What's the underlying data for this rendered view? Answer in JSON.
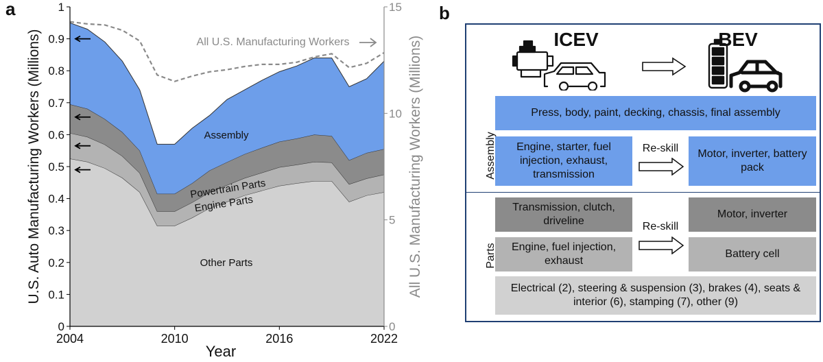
{
  "panel_a_label": "a",
  "panel_b_label": "b",
  "chart_data": {
    "type": "area",
    "stacked": true,
    "x": [
      2004,
      2005,
      2006,
      2007,
      2008,
      2009,
      2010,
      2011,
      2012,
      2013,
      2014,
      2015,
      2016,
      2017,
      2018,
      2019,
      2020,
      2021,
      2022
    ],
    "xticks": [
      "2004",
      "2010",
      "2016",
      "2022"
    ],
    "xlabel": "Year",
    "ylabel": "U.S. Auto Manufacturing Workers (Millions)",
    "ylim": [
      0,
      1
    ],
    "yticks": [
      "0",
      "0.1",
      "0.2",
      "0.3",
      "0.4",
      "0.5",
      "0.6",
      "0.7",
      "0.8",
      "0.9",
      "1"
    ],
    "y2label": "All U.S. Manufacturing Workers (Millions)",
    "y2lim": [
      0,
      15
    ],
    "y2ticks": [
      "0",
      "5",
      "10",
      "15"
    ],
    "series": [
      {
        "name": "Other Parts",
        "color": "#d1d1d1",
        "values": [
          0.525,
          0.515,
          0.495,
          0.465,
          0.42,
          0.315,
          0.315,
          0.34,
          0.37,
          0.39,
          0.41,
          0.425,
          0.44,
          0.448,
          0.455,
          0.455,
          0.39,
          0.41,
          0.42
        ]
      },
      {
        "name": "Engine Parts",
        "color": "#b3b3b3",
        "values": [
          0.08,
          0.078,
          0.074,
          0.068,
          0.06,
          0.045,
          0.045,
          0.048,
          0.05,
          0.052,
          0.054,
          0.056,
          0.058,
          0.058,
          0.06,
          0.058,
          0.055,
          0.053,
          0.055
        ]
      },
      {
        "name": "Powertrain Parts",
        "color": "#8b8b8b",
        "values": [
          0.09,
          0.088,
          0.08,
          0.075,
          0.07,
          0.055,
          0.055,
          0.06,
          0.068,
          0.072,
          0.075,
          0.078,
          0.08,
          0.082,
          0.085,
          0.083,
          0.075,
          0.08,
          0.08
        ]
      },
      {
        "name": "Assembly",
        "color": "#6d9eea",
        "values": [
          0.255,
          0.249,
          0.241,
          0.222,
          0.19,
          0.155,
          0.155,
          0.172,
          0.172,
          0.196,
          0.201,
          0.211,
          0.219,
          0.227,
          0.24,
          0.244,
          0.23,
          0.232,
          0.275
        ]
      }
    ],
    "line_series": {
      "name": "All U.S. Manufacturing Workers",
      "axis": "right",
      "color": "#8a8a8a",
      "values": [
        14.3,
        14.2,
        14.15,
        13.9,
        13.4,
        11.8,
        11.5,
        11.75,
        11.95,
        12.05,
        12.2,
        12.3,
        12.3,
        12.4,
        12.65,
        12.8,
        12.15,
        12.35,
        12.85
      ]
    },
    "arrow_markers": [
      0.9,
      0.655,
      0.565,
      0.49
    ],
    "labels": {
      "assembly": "Assembly",
      "powertrain": "Powertrain Parts",
      "engine": "Engine Parts",
      "other": "Other Parts",
      "all_us": "All U.S. Manufacturing Workers"
    }
  },
  "panel_b": {
    "icev_title": "ICEV",
    "bev_title": "BEV",
    "section_assembly": "Assembly",
    "section_parts": "Parts",
    "reskill_1": "Re-skill",
    "reskill_2": "Re-skill",
    "boxes": {
      "assembly_common": "Press, body, paint, decking, chassis, final assembly",
      "icev_engine_assembly": "Engine, starter, fuel injection, exhaust, transmission",
      "bev_motor_assembly": "Motor, inverter, battery pack",
      "icev_transmission_parts": "Transmission, clutch, driveline",
      "icev_engine_parts": "Engine, fuel injection, exhaust",
      "bev_motor_parts": "Motor, inverter",
      "bev_battery_parts": "Battery cell",
      "parts_common": "Electrical (2), steering & suspension (3), brakes (4), seats & interior (6), stamping (7), other (9)"
    },
    "colors": {
      "blue": "#6d9eea",
      "dark": "#8b8b8b",
      "mid": "#b3b3b3",
      "light": "#d1d1d1",
      "frame": "#1f3f73"
    }
  }
}
